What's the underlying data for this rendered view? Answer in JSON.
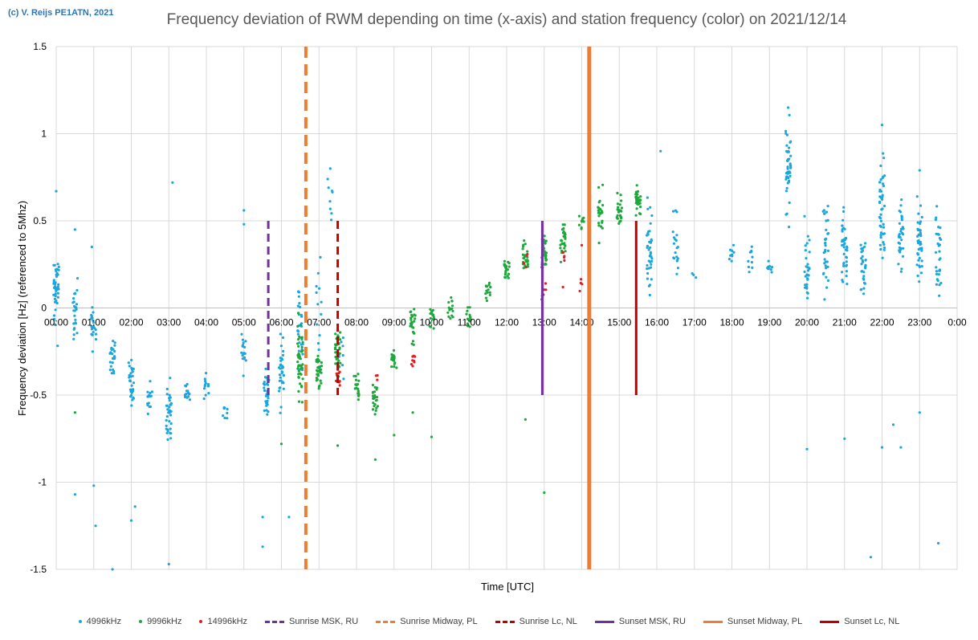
{
  "copyright": "(c) V. Reijs  PE1ATN, 2021",
  "chart_data": {
    "type": "scatter",
    "title": "Frequency deviation of RWM depending on time (x-axis) and station frequency (color) on 2021/12/14",
    "xlabel": "Time [UTC]",
    "ylabel": "Frequency deviation [Hz] (referenced to 5Mhz)",
    "ylim": [
      -1.5,
      1.5
    ],
    "yticks": [
      {
        "v": 1.5,
        "label": "1.5"
      },
      {
        "v": 1,
        "label": "1"
      },
      {
        "v": 0.5,
        "label": "0.5"
      },
      {
        "v": 0,
        "label": "0"
      },
      {
        "v": -0.5,
        "label": "-0.5"
      },
      {
        "v": -1,
        "label": "-1"
      },
      {
        "v": -1.5,
        "label": "-1.5"
      }
    ],
    "xlim_hours": [
      0,
      24
    ],
    "xticks": [
      "00:00",
      "01:00",
      "02:00",
      "03:00",
      "04:00",
      "05:00",
      "06:00",
      "07:00",
      "08:00",
      "09:00",
      "10:00",
      "11:00",
      "12:00",
      "13:00",
      "14:00",
      "15:00",
      "16:00",
      "17:00",
      "18:00",
      "19:00",
      "20:00",
      "21:00",
      "22:00",
      "23:00",
      "0:00"
    ],
    "series": [
      {
        "name": "4996kHz",
        "color": "#1aa7dd",
        "clusters": [
          {
            "t": 0.0,
            "c": 0.1,
            "s": 0.15,
            "n": 40
          },
          {
            "t": 0.5,
            "c": -0.05,
            "s": 0.12,
            "n": 25
          },
          {
            "t": 1.0,
            "c": -0.1,
            "s": 0.08,
            "n": 22
          },
          {
            "t": 1.5,
            "c": -0.28,
            "s": 0.08,
            "n": 25
          },
          {
            "t": 2.0,
            "c": -0.45,
            "s": 0.08,
            "n": 30
          },
          {
            "t": 2.5,
            "c": -0.5,
            "s": 0.06,
            "n": 15
          },
          {
            "t": 3.0,
            "c": -0.6,
            "s": 0.1,
            "n": 35
          },
          {
            "t": 3.5,
            "c": -0.5,
            "s": 0.06,
            "n": 15
          },
          {
            "t": 4.0,
            "c": -0.45,
            "s": 0.05,
            "n": 12
          },
          {
            "t": 4.5,
            "c": -0.6,
            "s": 0.03,
            "n": 8
          },
          {
            "t": 5.0,
            "c": -0.25,
            "s": 0.06,
            "n": 18
          },
          {
            "t": 5.6,
            "c": -0.48,
            "s": 0.08,
            "n": 35
          },
          {
            "t": 6.0,
            "c": -0.35,
            "s": 0.12,
            "n": 35
          },
          {
            "t": 6.5,
            "c": -0.15,
            "s": 0.18,
            "n": 30
          },
          {
            "t": 7.0,
            "c": -0.05,
            "s": 0.2,
            "n": 15
          },
          {
            "t": 7.3,
            "c": 0.6,
            "s": 0.15,
            "n": 8
          },
          {
            "t": 7.6,
            "c": -0.3,
            "s": 0.1,
            "n": 10
          },
          {
            "t": 15.8,
            "c": 0.35,
            "s": 0.15,
            "n": 40
          },
          {
            "t": 16.5,
            "c": 0.35,
            "s": 0.12,
            "n": 20
          },
          {
            "t": 17.0,
            "c": 0.18,
            "s": 0.02,
            "n": 3
          },
          {
            "t": 18.0,
            "c": 0.3,
            "s": 0.04,
            "n": 10
          },
          {
            "t": 18.5,
            "c": 0.28,
            "s": 0.05,
            "n": 10
          },
          {
            "t": 19.0,
            "c": 0.23,
            "s": 0.04,
            "n": 10
          },
          {
            "t": 19.5,
            "c": 0.75,
            "s": 0.18,
            "n": 45
          },
          {
            "t": 20.0,
            "c": 0.2,
            "s": 0.15,
            "n": 30
          },
          {
            "t": 20.5,
            "c": 0.35,
            "s": 0.18,
            "n": 35
          },
          {
            "t": 21.0,
            "c": 0.35,
            "s": 0.15,
            "n": 40
          },
          {
            "t": 21.5,
            "c": 0.25,
            "s": 0.12,
            "n": 30
          },
          {
            "t": 22.0,
            "c": 0.55,
            "s": 0.18,
            "n": 45
          },
          {
            "t": 22.5,
            "c": 0.4,
            "s": 0.12,
            "n": 35
          },
          {
            "t": 23.0,
            "c": 0.4,
            "s": 0.15,
            "n": 40
          },
          {
            "t": 23.5,
            "c": 0.3,
            "s": 0.12,
            "n": 30
          }
        ],
        "outliers": [
          {
            "t": 0.0,
            "v": 0.67
          },
          {
            "t": 0.5,
            "v": 0.45
          },
          {
            "t": 0.95,
            "v": 0.35
          },
          {
            "t": 0.5,
            "v": -1.07
          },
          {
            "t": 1.0,
            "v": -1.02
          },
          {
            "t": 1.05,
            "v": -1.25
          },
          {
            "t": 1.5,
            "v": -1.5
          },
          {
            "t": 2.0,
            "v": -1.22
          },
          {
            "t": 2.1,
            "v": -1.14
          },
          {
            "t": 3.1,
            "v": 0.72
          },
          {
            "t": 3.0,
            "v": -1.47
          },
          {
            "t": 5.0,
            "v": 0.56
          },
          {
            "t": 5.0,
            "v": 0.48
          },
          {
            "t": 5.5,
            "v": -1.2
          },
          {
            "t": 5.5,
            "v": -1.37
          },
          {
            "t": 6.2,
            "v": -1.2
          },
          {
            "t": 7.3,
            "v": 0.8
          },
          {
            "t": 16.1,
            "v": 0.9
          },
          {
            "t": 19.5,
            "v": 1.15
          },
          {
            "t": 20.0,
            "v": -0.81
          },
          {
            "t": 21.0,
            "v": -0.75
          },
          {
            "t": 21.7,
            "v": -1.43
          },
          {
            "t": 22.0,
            "v": 1.05
          },
          {
            "t": 22.0,
            "v": -0.8
          },
          {
            "t": 22.5,
            "v": -0.8
          },
          {
            "t": 23.0,
            "v": 0.79
          },
          {
            "t": 23.5,
            "v": -1.35
          },
          {
            "t": 22.3,
            "v": -0.67
          },
          {
            "t": 23.0,
            "v": -0.6
          }
        ]
      },
      {
        "name": "9996kHz",
        "color": "#1ea83c",
        "clusters": [
          {
            "t": 6.5,
            "c": -0.3,
            "s": 0.12,
            "n": 45
          },
          {
            "t": 7.0,
            "c": -0.35,
            "s": 0.06,
            "n": 30
          },
          {
            "t": 7.5,
            "c": -0.25,
            "s": 0.1,
            "n": 35
          },
          {
            "t": 8.0,
            "c": -0.45,
            "s": 0.05,
            "n": 20
          },
          {
            "t": 8.5,
            "c": -0.53,
            "s": 0.05,
            "n": 25
          },
          {
            "t": 9.0,
            "c": -0.3,
            "s": 0.04,
            "n": 18
          },
          {
            "t": 9.5,
            "c": -0.1,
            "s": 0.08,
            "n": 25
          },
          {
            "t": 10.0,
            "c": -0.05,
            "s": 0.05,
            "n": 18
          },
          {
            "t": 10.5,
            "c": 0.0,
            "s": 0.04,
            "n": 15
          },
          {
            "t": 11.0,
            "c": -0.05,
            "s": 0.05,
            "n": 15
          },
          {
            "t": 11.5,
            "c": 0.1,
            "s": 0.04,
            "n": 15
          },
          {
            "t": 12.0,
            "c": 0.22,
            "s": 0.04,
            "n": 25
          },
          {
            "t": 12.5,
            "c": 0.3,
            "s": 0.05,
            "n": 25
          },
          {
            "t": 13.0,
            "c": 0.32,
            "s": 0.06,
            "n": 35
          },
          {
            "t": 13.5,
            "c": 0.38,
            "s": 0.06,
            "n": 30
          },
          {
            "t": 14.0,
            "c": 0.5,
            "s": 0.03,
            "n": 10
          },
          {
            "t": 14.5,
            "c": 0.55,
            "s": 0.08,
            "n": 25
          },
          {
            "t": 15.0,
            "c": 0.55,
            "s": 0.06,
            "n": 25
          },
          {
            "t": 15.5,
            "c": 0.62,
            "s": 0.05,
            "n": 30
          }
        ],
        "outliers": [
          {
            "t": 8.5,
            "v": -0.87
          },
          {
            "t": 9.0,
            "v": -0.73
          },
          {
            "t": 9.5,
            "v": -0.6
          },
          {
            "t": 10.0,
            "v": -0.74
          },
          {
            "t": 12.5,
            "v": -0.64
          },
          {
            "t": 13.0,
            "v": -1.06
          },
          {
            "t": 0.5,
            "v": -0.6
          },
          {
            "t": 6.0,
            "v": -0.78
          },
          {
            "t": 7.5,
            "v": -0.79
          }
        ]
      },
      {
        "name": "14996kHz",
        "color": "#e02020",
        "clusters": [
          {
            "t": 7.5,
            "c": -0.4,
            "s": 0.04,
            "n": 8
          },
          {
            "t": 8.5,
            "c": -0.4,
            "s": 0.01,
            "n": 3
          },
          {
            "t": 9.5,
            "c": -0.3,
            "s": 0.05,
            "n": 8
          },
          {
            "t": 12.5,
            "c": 0.25,
            "s": 0.04,
            "n": 5
          },
          {
            "t": 13.0,
            "c": 0.1,
            "s": 0.05,
            "n": 6
          },
          {
            "t": 13.5,
            "c": 0.3,
            "s": 0.02,
            "n": 4
          },
          {
            "t": 14.0,
            "c": 0.15,
            "s": 0.03,
            "n": 4
          }
        ],
        "outliers": [
          {
            "t": 13.5,
            "v": 0.12
          },
          {
            "t": 13.5,
            "v": 0.32
          },
          {
            "t": 14.0,
            "v": 0.36
          }
        ]
      }
    ],
    "vertical_lines": [
      {
        "name": "Sunrise MSK, RU",
        "color": "#7030a0",
        "dash": true,
        "hour": 5.65,
        "from": -0.5,
        "to": 0.5,
        "width": 3
      },
      {
        "name": "Sunrise Midway, PL",
        "color": "#ed7d31",
        "dash": true,
        "hour": 6.65,
        "from": -1.5,
        "to": 1.5,
        "width": 4
      },
      {
        "name": "Sunrise Lc, NL",
        "color": "#c00000",
        "dash": true,
        "hour": 7.5,
        "from": -0.5,
        "to": 0.5,
        "width": 3
      },
      {
        "name": "Sunset MSK, RU",
        "color": "#7030a0",
        "dash": false,
        "hour": 12.95,
        "from": -0.5,
        "to": 0.5,
        "width": 3
      },
      {
        "name": "Sunset Midway, PL",
        "color": "#ed7d31",
        "dash": false,
        "hour": 14.2,
        "from": -1.5,
        "to": 1.5,
        "width": 5
      },
      {
        "name": "Sunset Lc, NL",
        "color": "#c00000",
        "dash": false,
        "hour": 15.45,
        "from": -0.5,
        "to": 0.5,
        "width": 3
      }
    ],
    "legend_position": "bottom"
  }
}
